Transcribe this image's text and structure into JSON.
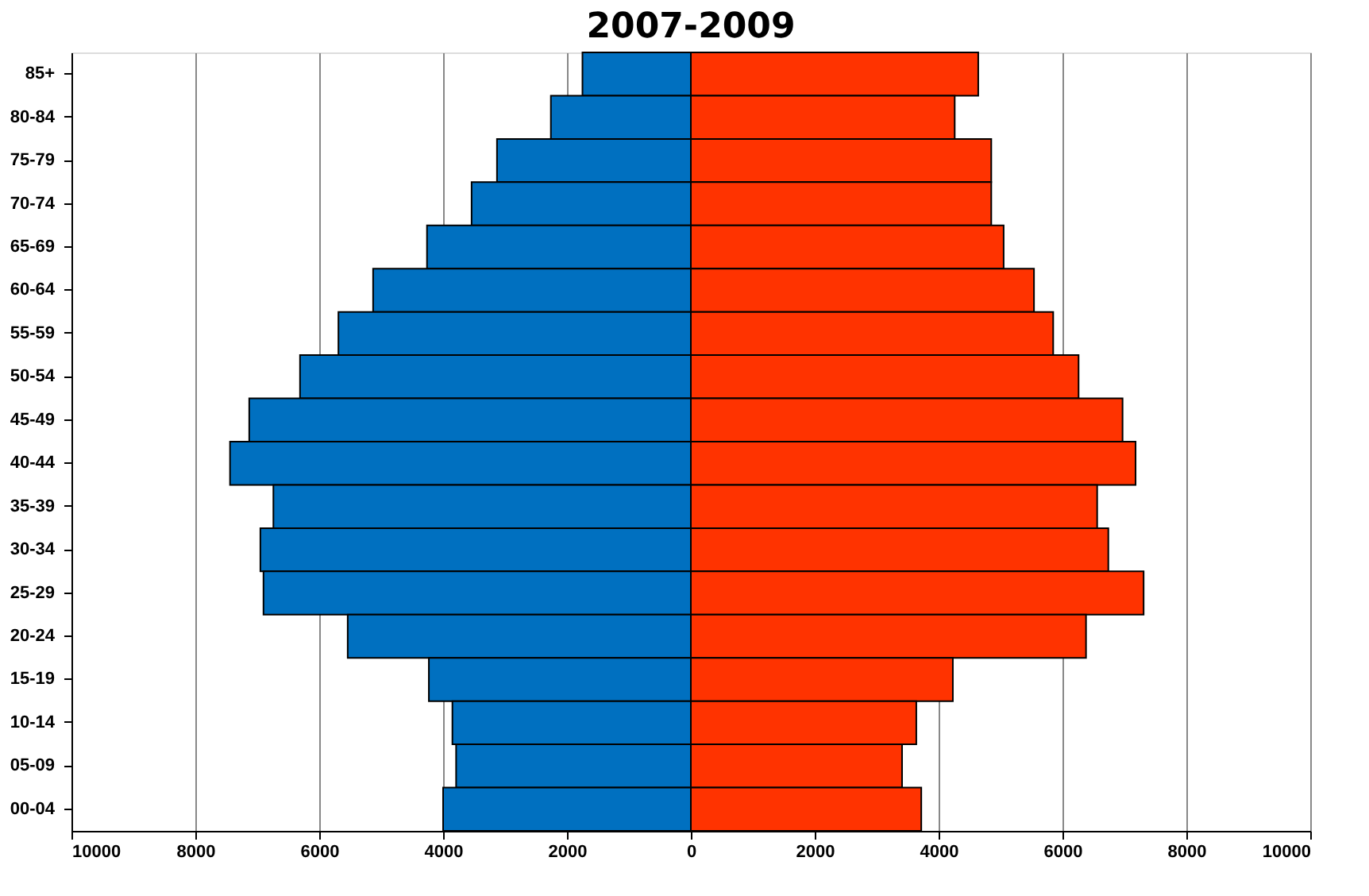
{
  "chart_data": {
    "type": "bar",
    "orientation": "horizontal",
    "title": "2007-2009",
    "categories": [
      "85+",
      "80-84",
      "75-79",
      "70-74",
      "65-69",
      "60-64",
      "55-59",
      "50-54",
      "45-49",
      "40-44",
      "35-39",
      "30-34",
      "25-29",
      "20-24",
      "15-19",
      "10-14",
      "05-09",
      "00-04"
    ],
    "series": [
      {
        "color": "#0070c0",
        "values": [
          -1750,
          -2260,
          -3130,
          -3540,
          -4260,
          -5130,
          -5690,
          -6310,
          -7130,
          -7440,
          -6740,
          -6950,
          -6900,
          -5540,
          -4230,
          -3850,
          -3790,
          -4000
        ]
      },
      {
        "color": "#ff3300",
        "values": [
          4640,
          4260,
          4850,
          4850,
          5050,
          5540,
          5850,
          6260,
          6970,
          7180,
          6560,
          6740,
          7310,
          6380,
          4230,
          3640,
          3410,
          3720
        ]
      }
    ],
    "xlim": [
      -10000,
      10000
    ],
    "xticks": [
      {
        "value": -10000,
        "label": "10000"
      },
      {
        "value": -8000,
        "label": "8000"
      },
      {
        "value": -6000,
        "label": "6000"
      },
      {
        "value": -4000,
        "label": "4000"
      },
      {
        "value": -2000,
        "label": "2000"
      },
      0,
      2000,
      4000,
      6000,
      8000,
      10000
    ],
    "stacked": true,
    "grid": "x"
  }
}
